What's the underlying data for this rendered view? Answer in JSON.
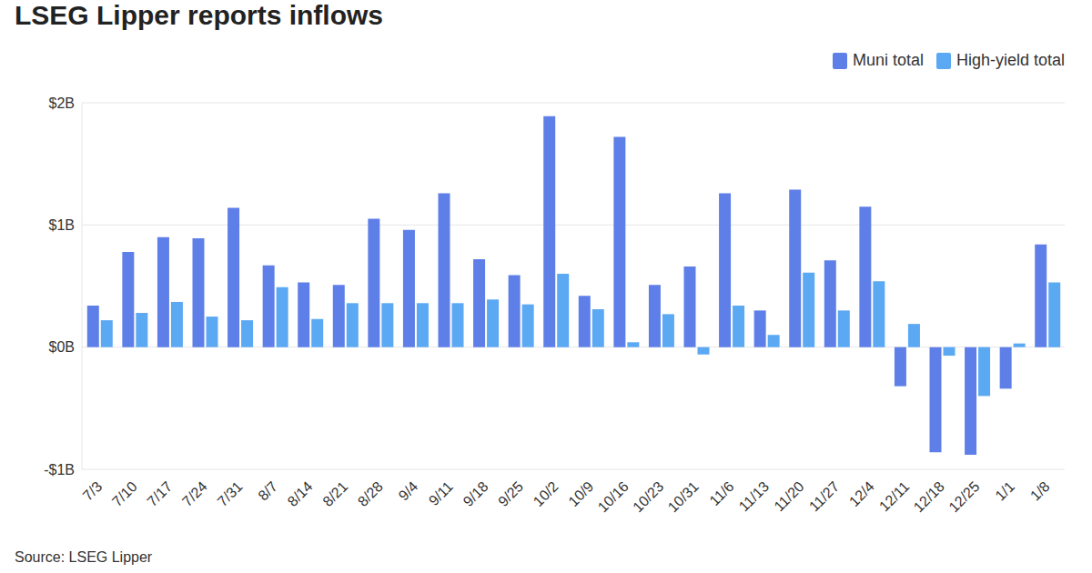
{
  "chart_data": {
    "type": "bar",
    "title": "LSEG Lipper reports inflows",
    "source": "Source: LSEG Lipper",
    "categories": [
      "7/3",
      "7/10",
      "7/17",
      "7/24",
      "7/31",
      "8/7",
      "8/14",
      "8/21",
      "8/28",
      "9/4",
      "9/11",
      "9/18",
      "9/25",
      "10/2",
      "10/9",
      "10/16",
      "10/23",
      "10/31",
      "11/6",
      "11/13",
      "11/20",
      "11/27",
      "12/4",
      "12/11",
      "12/18",
      "12/25",
      "1/1",
      "1/8"
    ],
    "series": [
      {
        "name": "Muni total",
        "color": "#5f7fe8",
        "values": [
          0.34,
          0.78,
          0.9,
          0.89,
          1.14,
          0.67,
          0.53,
          0.51,
          1.05,
          0.96,
          1.26,
          0.72,
          0.59,
          1.89,
          0.42,
          1.72,
          0.51,
          0.66,
          1.26,
          0.3,
          1.29,
          0.71,
          1.15,
          -0.32,
          -0.86,
          -0.88,
          -0.34,
          0.84
        ]
      },
      {
        "name": "High-yield total",
        "color": "#5ba8f3",
        "values": [
          0.22,
          0.28,
          0.37,
          0.25,
          0.22,
          0.49,
          0.23,
          0.36,
          0.36,
          0.36,
          0.36,
          0.39,
          0.35,
          0.6,
          0.31,
          0.04,
          0.27,
          -0.06,
          0.34,
          0.1,
          0.61,
          0.3,
          0.54,
          0.19,
          -0.07,
          -0.4,
          0.03,
          0.53
        ]
      }
    ],
    "ylim": [
      -1,
      2
    ],
    "yticks": [
      {
        "value": -1,
        "label": "-$1B"
      },
      {
        "value": 0,
        "label": "$0B"
      },
      {
        "value": 1,
        "label": "$1B"
      },
      {
        "value": 2,
        "label": "$2B"
      }
    ],
    "grid": true,
    "legend": "upper right"
  }
}
